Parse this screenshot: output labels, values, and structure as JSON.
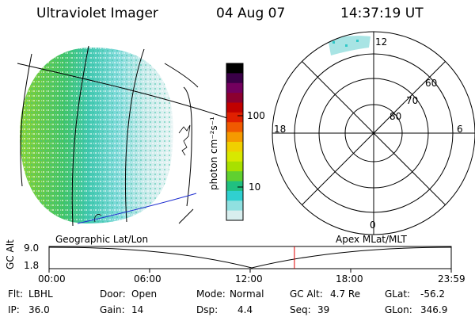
{
  "header": {
    "instrument": "Ultraviolet Imager",
    "date": "04 Aug 07",
    "time": "14:37:19 UT"
  },
  "colorbar": {
    "unit_label": "photon cm⁻²s⁻¹",
    "ticks": [
      "100",
      "10"
    ],
    "colors": [
      "#000000",
      "#3a0047",
      "#73005e",
      "#8c0030",
      "#c00000",
      "#e02000",
      "#f05a00",
      "#f59a00",
      "#f0d000",
      "#d8e800",
      "#a8e000",
      "#60d030",
      "#20c080",
      "#30d0d0",
      "#90e0e0",
      "#d8eeee"
    ]
  },
  "polar_plot": {
    "mlt_labels": {
      "top": "12",
      "left": "18",
      "right": "6",
      "bottom": "0"
    },
    "lat_labels": [
      "60",
      "70",
      "80"
    ]
  },
  "projection_labels": {
    "left": "Geographic Lat/Lon",
    "right": "Apex MLat/MLT"
  },
  "altitude_strip": {
    "axis_label": "GC Alt",
    "ymax": "9.0",
    "ymin": "1.8",
    "ticks": [
      "00:00",
      "06:00",
      "12:00",
      "18:00",
      "23:59"
    ],
    "current_time_fraction": 0.61,
    "marker_color": "#e00000"
  },
  "info": {
    "flt_label": "Flt:",
    "flt_value": "LBHL",
    "ip_label": "IP:",
    "ip_value": "36.0",
    "door_label": "Door:",
    "door_value": "Open",
    "gain_label": "Gain:",
    "gain_value": "14",
    "mode_label": "Mode:",
    "mode_value": "Normal",
    "dsp_label": "Dsp:",
    "dsp_value": "4.4",
    "gcalt_label": "GC Alt:",
    "gcalt_value": "4.7 Re",
    "seq_label": "Seq:",
    "seq_value": "39",
    "glat_label": "GLat:",
    "glat_value": "-56.2",
    "glon_label": "GLon:",
    "glon_value": "346.9"
  }
}
